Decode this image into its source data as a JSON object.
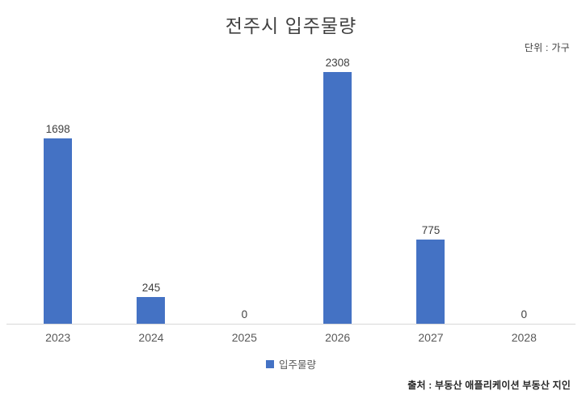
{
  "title": "전주시 입주물량",
  "unit_note": "단위 : 가구",
  "source_note": "출처 : 부동산 애플리케이션 부동산 지인",
  "legend": {
    "label": "입주물량",
    "swatch": "square-icon",
    "color": "#4472C4"
  },
  "colors": {
    "bar": "#4472C4",
    "axis_line": "#d9d9d9",
    "title_text": "#404040",
    "value_label_text": "#404040",
    "tick_text": "#595959"
  },
  "chart_data": {
    "type": "bar",
    "title": "전주시 입주물량",
    "categories": [
      "2023",
      "2024",
      "2025",
      "2026",
      "2027",
      "2028"
    ],
    "series": [
      {
        "name": "입주물량",
        "values": [
          1698,
          245,
          0,
          2308,
          775,
          0
        ]
      }
    ],
    "data_labels": [
      1698,
      245,
      0,
      2308,
      775,
      0
    ],
    "xlabel": "",
    "ylabel": "",
    "unit": "가구",
    "ylim": [
      0,
      2308
    ],
    "grid": false,
    "y_axis_visible": false,
    "legend_position": "bottom"
  }
}
